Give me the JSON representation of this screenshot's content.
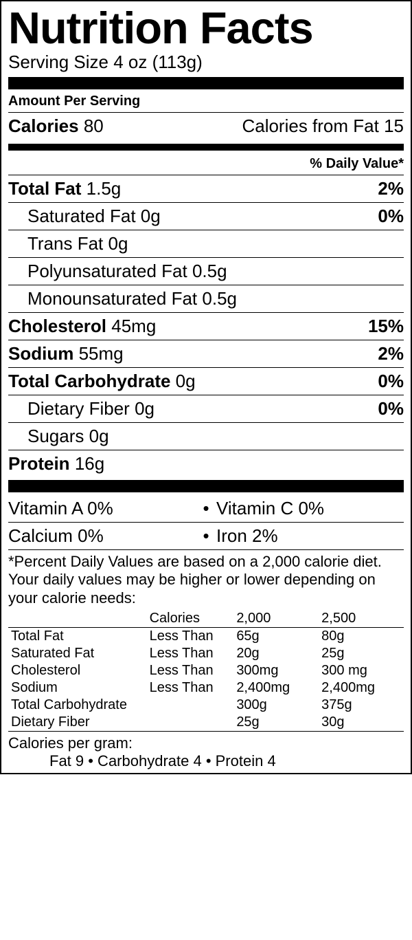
{
  "title": "Nutrition Facts",
  "serving_size_label": "Serving Size",
  "serving_size_value": "4 oz (113g)",
  "amount_per_serving": "Amount Per Serving",
  "calories_label": "Calories",
  "calories_value": "80",
  "calories_from_fat_label": "Calories from Fat",
  "calories_from_fat_value": "15",
  "dv_header": "% Daily Value*",
  "nutrients": {
    "total_fat": {
      "label": "Total Fat",
      "value": "1.5g",
      "dv": "2%"
    },
    "sat_fat": {
      "label": "Saturated Fat",
      "value": "0g",
      "dv": "0%"
    },
    "trans_fat": {
      "label": "Trans Fat",
      "value": "0g",
      "dv": ""
    },
    "poly_fat": {
      "label": "Polyunsaturated Fat",
      "value": "0.5g",
      "dv": ""
    },
    "mono_fat": {
      "label": "Monounsaturated Fat",
      "value": "0.5g",
      "dv": ""
    },
    "cholesterol": {
      "label": "Cholesterol",
      "value": "45mg",
      "dv": "15%"
    },
    "sodium": {
      "label": "Sodium",
      "value": "55mg",
      "dv": "2%"
    },
    "total_carb": {
      "label": "Total Carbohydrate",
      "value": "0g",
      "dv": "0%"
    },
    "fiber": {
      "label": "Dietary Fiber",
      "value": "0g",
      "dv": "0%"
    },
    "sugars": {
      "label": "Sugars",
      "value": "0g",
      "dv": ""
    },
    "protein": {
      "label": "Protein",
      "value": "16g",
      "dv": ""
    }
  },
  "vitamins": {
    "vit_a": {
      "label": "Vitamin A",
      "value": "0%"
    },
    "vit_c": {
      "label": "Vitamin C",
      "value": "0%"
    },
    "calcium": {
      "label": "Calcium",
      "value": "0%"
    },
    "iron": {
      "label": "Iron",
      "value": "2%"
    }
  },
  "footnote": "*Percent Daily Values are based on a 2,000 calorie diet. Your daily values may be higher or lower depending on your calorie needs:",
  "cal_table": {
    "headers": [
      "",
      "Calories",
      "2,000",
      "2,500"
    ],
    "rows": [
      [
        "Total Fat",
        "Less Than",
        "65g",
        "80g"
      ],
      [
        "Saturated Fat",
        "Less Than",
        "20g",
        "25g"
      ],
      [
        "Cholesterol",
        "Less Than",
        "300mg",
        "300 mg"
      ],
      [
        "Sodium",
        "Less Than",
        "2,400mg",
        "2,400mg"
      ],
      [
        "Total Carbohydrate",
        "",
        "300g",
        "375g"
      ],
      [
        "Dietary Fiber",
        "",
        "25g",
        "30g"
      ]
    ],
    "indent_rows": [
      1,
      5
    ]
  },
  "cpg_label": "Calories per gram:",
  "cpg_values": "Fat 9   •   Carbohydrate 4   •   Protein 4",
  "colors": {
    "text": "#000000",
    "background": "#ffffff",
    "bar": "#000000"
  }
}
